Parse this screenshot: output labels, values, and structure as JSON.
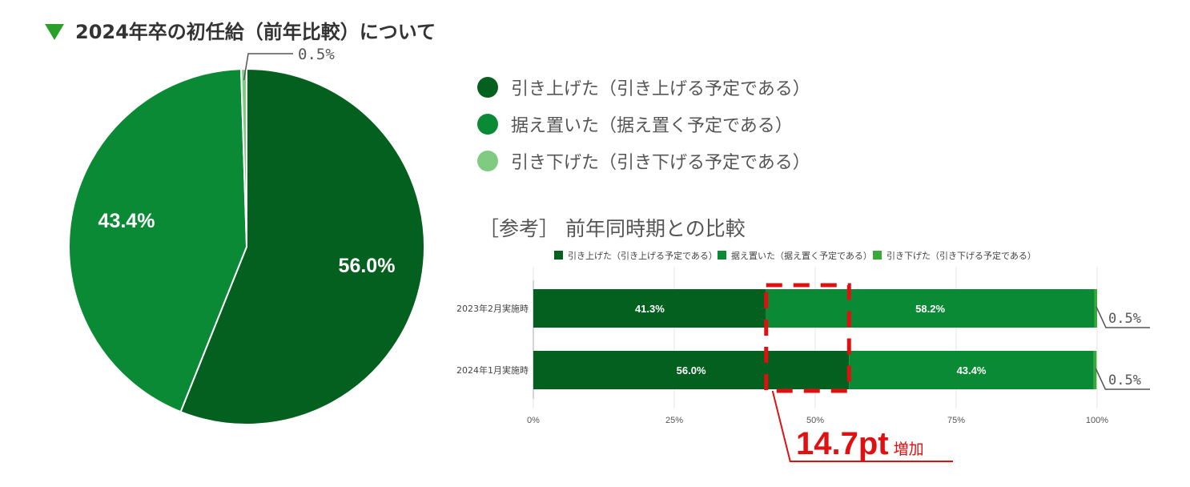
{
  "title": "2024年卒の初任給（前年比較）について",
  "colors": {
    "raise": "#04601F",
    "keep": "#0B8A35",
    "lower": "#7FCB82",
    "lower_bar": "#39A93A",
    "accent": "#E01010",
    "bullet": "#2AA02A"
  },
  "legend": [
    {
      "label": "引き上げた（引き上げる予定である）",
      "color": "#04601F"
    },
    {
      "label": "据え置いた（据え置く予定である）",
      "color": "#0B8A35"
    },
    {
      "label": "引き下げた（引き下げる予定である）",
      "color": "#7FCB82"
    }
  ],
  "reference_title": "［参考］ 前年同時期との比較",
  "annotation": {
    "value": "14.7pt",
    "suffix": "増加"
  },
  "chart_data": [
    {
      "type": "pie",
      "title": "2024年卒の初任給（前年比較）について",
      "slices": [
        {
          "label": "引き上げた（引き上げる予定である）",
          "value": 56.0,
          "display": "56.0%"
        },
        {
          "label": "据え置いた（据え置く予定である）",
          "value": 43.4,
          "display": "43.4%"
        },
        {
          "label": "引き下げた（引き下げる予定である）",
          "value": 0.5,
          "display": "0.5%"
        }
      ]
    },
    {
      "type": "bar",
      "orientation": "horizontal",
      "stacked": true,
      "title": "［参考］ 前年同時期との比較",
      "categories": [
        "2023年2月実施時",
        "2024年1月実施時"
      ],
      "series": [
        {
          "name": "引き上げた（引き上げる予定である）",
          "values": [
            41.3,
            56.0
          ],
          "labels": [
            "41.3%",
            "56.0%"
          ]
        },
        {
          "name": "据え置いた（据え置く予定である）",
          "values": [
            58.2,
            43.4
          ],
          "labels": [
            "58.2%",
            "43.4%"
          ]
        },
        {
          "name": "引き下げた（引き下げる予定である）",
          "values": [
            0.5,
            0.5
          ],
          "labels": [
            "0.5%",
            "0.5%"
          ]
        }
      ],
      "xticks": [
        "0%",
        "25%",
        "50%",
        "75%",
        "100%"
      ],
      "xlim": [
        0,
        100
      ],
      "grid": true,
      "legend_position": "top"
    }
  ]
}
